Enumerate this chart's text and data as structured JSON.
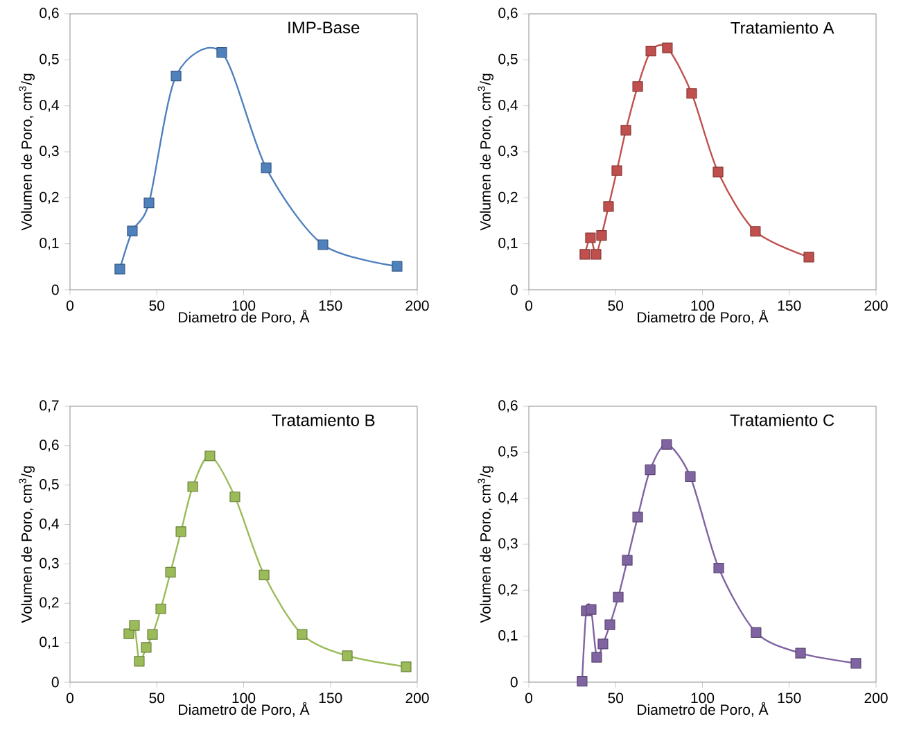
{
  "chart_data": [
    {
      "type": "line",
      "title": "IMP-Base",
      "xlabel": "Diametro de Poro, Å",
      "ylabel": "Volumen de Poro, cm$^{3}$/g",
      "marker": "square",
      "x": [
        28.7,
        35.9,
        45.5,
        61.1,
        87.4,
        113,
        145.7,
        188.4
      ],
      "series": [
        {
          "color": "#4f81bd",
          "values": [
            0.045,
            0.128,
            0.189,
            0.465,
            0.516,
            0.265,
            0.098,
            0.051
          ]
        }
      ],
      "xlim": [
        0,
        200
      ],
      "xticks": [
        0,
        50,
        100,
        150,
        200
      ],
      "ylim": [
        0,
        0.6
      ],
      "yticks": [
        0,
        {
          "value": 0.1,
          "label": "0,1"
        },
        {
          "value": 0.2,
          "label": "0,2"
        },
        {
          "value": 0.3,
          "label": "0,3"
        },
        {
          "value": 0.4,
          "label": "0,4"
        },
        {
          "value": 0.5,
          "label": "0,5"
        },
        {
          "value": 0.6,
          "label": "0,6"
        }
      ]
    },
    {
      "type": "line",
      "title": "Tratamiento A",
      "xlabel": "Diametro de Poro, Å",
      "ylabel": "Volumen de Poro, cm$^{3}$/g",
      "marker": "square",
      "x": [
        32.3,
        35.5,
        38.7,
        41.9,
        45.9,
        50.7,
        55.9,
        62.7,
        70.3,
        79.8,
        93.8,
        109,
        130.5,
        161.3
      ],
      "series": [
        {
          "color": "#c0504d",
          "values": [
            0.077,
            0.113,
            0.077,
            0.118,
            0.181,
            0.259,
            0.347,
            0.442,
            0.519,
            0.526,
            0.427,
            0.256,
            0.127,
            0.071
          ]
        }
      ],
      "xlim": [
        0,
        200
      ],
      "xticks": [
        0,
        50,
        100,
        150,
        200
      ],
      "ylim": [
        0,
        0.6
      ],
      "yticks": [
        0,
        {
          "value": 0.1,
          "label": "0,1"
        },
        {
          "value": 0.2,
          "label": "0,2"
        },
        {
          "value": 0.3,
          "label": "0,3"
        },
        {
          "value": 0.4,
          "label": "0,4"
        },
        {
          "value": 0.5,
          "label": "0,5"
        },
        {
          "value": 0.6,
          "label": "0,6"
        }
      ]
    },
    {
      "type": "line",
      "title": "Tratamiento B",
      "xlabel": "Diametro de Poro, Å",
      "ylabel": "Volumen de Poro, cm$^{3}$/g",
      "marker": "square",
      "x": [
        33.9,
        37.1,
        39.9,
        43.9,
        47.5,
        52.3,
        57.9,
        63.9,
        70.7,
        80.6,
        95,
        111.8,
        133.7,
        159.7,
        193.6
      ],
      "series": [
        {
          "color": "#9bbb59",
          "values": [
            0.123,
            0.144,
            0.053,
            0.088,
            0.121,
            0.186,
            0.279,
            0.382,
            0.496,
            0.574,
            0.47,
            0.272,
            0.121,
            0.067,
            0.039
          ]
        }
      ],
      "xlim": [
        0,
        200
      ],
      "xticks": [
        0,
        50,
        100,
        150,
        200
      ],
      "ylim": [
        0,
        0.7
      ],
      "yticks": [
        0,
        {
          "value": 0.1,
          "label": "0,1"
        },
        {
          "value": 0.2,
          "label": "0,2"
        },
        {
          "value": 0.3,
          "label": "0,3"
        },
        {
          "value": 0.4,
          "label": "0,4"
        },
        {
          "value": 0.5,
          "label": "0,5"
        },
        {
          "value": 0.6,
          "label": "0,6"
        },
        {
          "value": 0.7,
          "label": "0,7"
        }
      ]
    },
    {
      "type": "line",
      "title": "Tratamiento C",
      "xlabel": "Diametro de Poro, Å",
      "ylabel": "Volumen de Poro, cm$^{3}$/g",
      "marker": "square",
      "x": [
        30.7,
        33.1,
        35.9,
        39.1,
        42.7,
        46.7,
        51.5,
        56.7,
        62.7,
        69.9,
        79.4,
        93,
        109.4,
        130.9,
        156.5,
        188.4
      ],
      "series": [
        {
          "color": "#8064a2",
          "values": [
            0.002,
            0.155,
            0.158,
            0.054,
            0.083,
            0.125,
            0.185,
            0.265,
            0.359,
            0.462,
            0.517,
            0.447,
            0.248,
            0.108,
            0.063,
            0.041
          ]
        }
      ],
      "xlim": [
        0,
        200
      ],
      "xticks": [
        0,
        50,
        100,
        150,
        200
      ],
      "ylim": [
        0,
        0.6
      ],
      "yticks": [
        0,
        {
          "value": 0.1,
          "label": "0,1"
        },
        {
          "value": 0.2,
          "label": "0,2"
        },
        {
          "value": 0.3,
          "label": "0,3"
        },
        {
          "value": 0.4,
          "label": "0,4"
        },
        {
          "value": 0.5,
          "label": "0,5"
        },
        {
          "value": 0.6,
          "label": "0,6"
        }
      ]
    }
  ]
}
